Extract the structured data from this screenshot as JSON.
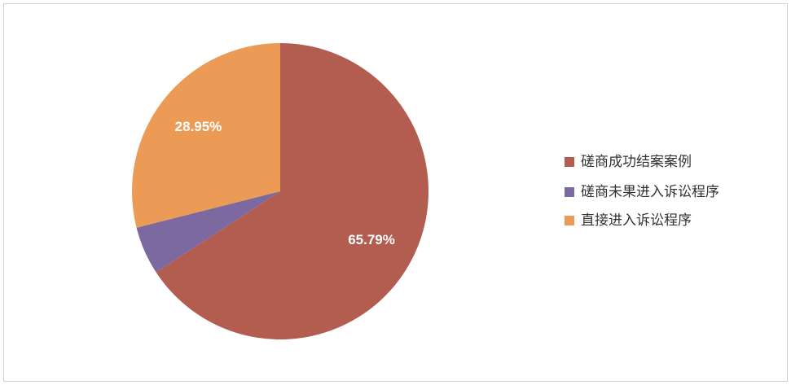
{
  "chart_data": {
    "type": "pie",
    "categories": [
      "磋商成功结案案例",
      "磋商未果进入诉讼程序",
      "直接进入诉讼程序"
    ],
    "values": [
      65.79,
      5.26,
      28.95
    ],
    "value_labels": [
      "65.79%",
      null,
      "28.95%"
    ],
    "colors": [
      "#b35c50",
      "#7b69a0",
      "#eb9b55"
    ],
    "legend": "right"
  }
}
